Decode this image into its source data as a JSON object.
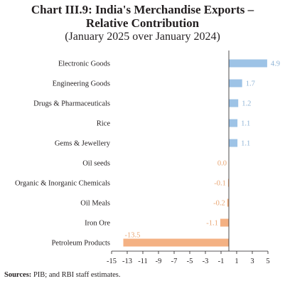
{
  "title_line1": "Chart III.9: India's Merchandise Exports –",
  "title_line2": "Relative Contribution",
  "title_line3": "(January 2025 over January 2024)",
  "source_label": "Sources:",
  "source_text": " PIB; and RBI staff estimates.",
  "colors": {
    "positive": "#9dc3e6",
    "negative": "#f4b183",
    "axis": "#231f20"
  },
  "chart_data": {
    "type": "bar",
    "orientation": "horizontal",
    "categories": [
      "Electronic Goods",
      "Engineering Goods",
      "Drugs & Pharmaceuticals",
      "Rice",
      "Gems & Jewellery",
      "Oil seeds",
      "Organic & Inorganic Chemicals",
      "Oil Meals",
      "Iron Ore",
      "Petroleum Products"
    ],
    "values": [
      4.9,
      1.7,
      1.2,
      1.1,
      1.1,
      0.0,
      -0.1,
      -0.2,
      -1.1,
      -13.5
    ],
    "value_labels": [
      "4.9",
      "1.7",
      "1.2",
      "1.1",
      "1.1",
      "0.0",
      "-0.1",
      "-0.2",
      "-1.1",
      "-13.5"
    ],
    "xlim": [
      -15,
      5
    ],
    "xticks": [
      "-15",
      "-13",
      "-11",
      "-9",
      "-7",
      "-5",
      "-3",
      "-1",
      "1",
      "3",
      "5"
    ],
    "grid": false,
    "legend": "none"
  }
}
